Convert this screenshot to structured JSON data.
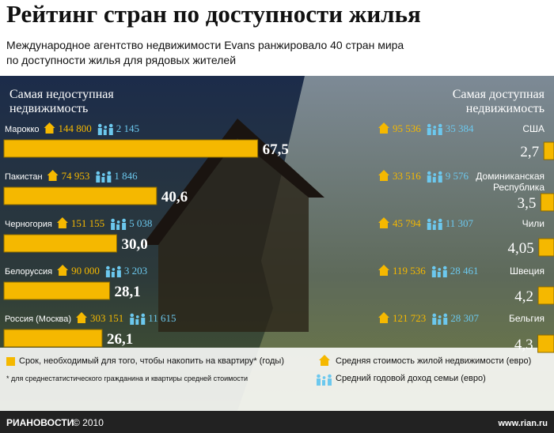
{
  "title": "Рейтинг стран по доступности жилья",
  "subtitle": [
    "Международное агентство недвижимости Evans ранжировало 40 стран мира",
    "по доступности жилья для рядовых жителей"
  ],
  "chart_data": [
    {
      "type": "bar",
      "title": "Самая недоступная недвижимость",
      "color": "#f5b800",
      "categories": [
        "Марокко",
        "Пакистан",
        "Черногория",
        "Белоруссия",
        "Россия (Москва)"
      ],
      "values": [
        67.5,
        40.6,
        30.0,
        28.1,
        26.1
      ],
      "value_labels": [
        "67,5",
        "40,6",
        "30,0",
        "28,1",
        "26,1"
      ],
      "prices": [
        144800,
        74953,
        151155,
        90000,
        303151
      ],
      "price_labels": [
        "144 800",
        "74 953",
        "151 155",
        "90 000",
        "303 151"
      ],
      "incomes": [
        2145,
        1846,
        5038,
        3203,
        11615
      ],
      "income_labels": [
        "2 145",
        "1 846",
        "5 038",
        "3 203",
        "11 615"
      ]
    },
    {
      "type": "bar",
      "title": "Самая доступная недвижимость",
      "color": "#f5b800",
      "categories": [
        "США",
        "Доминиканская Республика",
        "Чили",
        "Швеция",
        "Бельгия"
      ],
      "values": [
        2.7,
        3.5,
        4.05,
        4.2,
        4.3
      ],
      "value_labels": [
        "2,7",
        "3,5",
        "4,05",
        "4,2",
        "4,3"
      ],
      "prices": [
        95536,
        33516,
        45794,
        119536,
        121723
      ],
      "price_labels": [
        "95 536",
        "33 516",
        "45 794",
        "119 536",
        "121 723"
      ],
      "incomes": [
        35384,
        9576,
        11307,
        28461,
        28307
      ],
      "income_labels": [
        "35 384",
        "9 576",
        "11 307",
        "28 461",
        "28 307"
      ]
    }
  ],
  "legend": [
    "Срок, необходимый для того, чтобы накопить на квартиру* (годы)",
    "Средняя стоимость жилой недвижимости (евро)",
    "Средний годовой доход семьи (евро)"
  ],
  "footnote": "* для среднестатистического гражданина и квартиры средней стоимости",
  "brand": "РИАНОВОСТИ",
  "copyright": "© 2010",
  "url": "www.rian.ru"
}
